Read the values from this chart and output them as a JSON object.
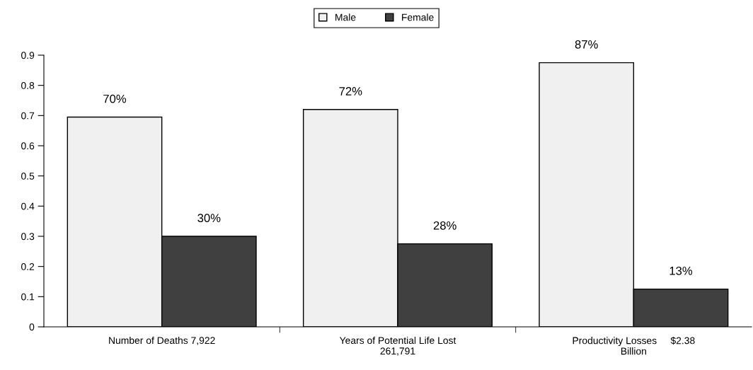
{
  "chart_data": {
    "type": "bar",
    "categories": [
      "Number of Deaths 7,922",
      "Years of Potential Life Lost\n261,791",
      "Productivity Losses     $2.38\nBillion"
    ],
    "series": [
      {
        "name": "Male",
        "color": "#f0f0f0",
        "values": [
          0.695,
          0.72,
          0.875
        ],
        "value_labels": [
          "70%",
          "72%",
          "87%"
        ]
      },
      {
        "name": "Female",
        "color": "#404040",
        "values": [
          0.3,
          0.275,
          0.125
        ],
        "value_labels": [
          "30%",
          "28%",
          "13%"
        ]
      }
    ],
    "ylim": [
      0,
      0.9
    ],
    "yticks": [
      0,
      0.1,
      0.2,
      0.3,
      0.4,
      0.5,
      0.6,
      0.7,
      0.8,
      0.9
    ],
    "grid": false,
    "legend": "top"
  }
}
